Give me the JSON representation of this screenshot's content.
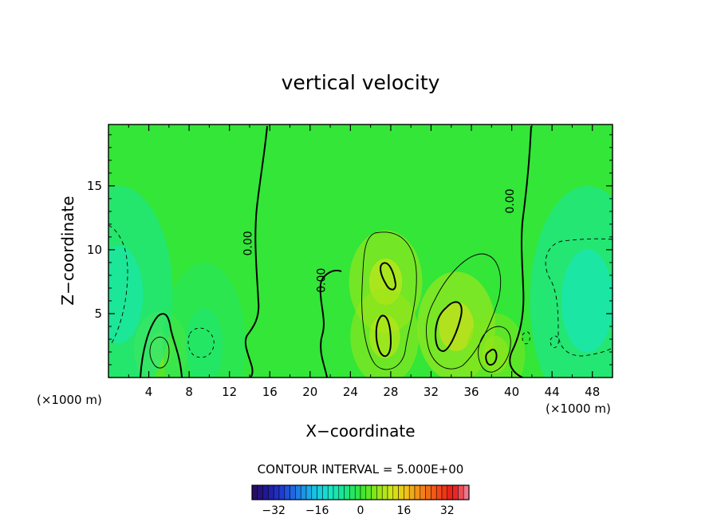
{
  "chart_data": {
    "type": "heatmap",
    "title": "vertical velocity",
    "xlabel": "X−coordinate",
    "ylabel": "Z−coordinate",
    "x_unit_label": "(×1000 m)",
    "y_unit_label": "(×1000 m)",
    "xlim": [
      0,
      50
    ],
    "ylim": [
      0,
      19.8
    ],
    "x_ticks": [
      4,
      8,
      12,
      16,
      20,
      24,
      28,
      32,
      36,
      40,
      44,
      48
    ],
    "y_ticks": [
      5,
      10,
      15
    ],
    "contour_interval_text": "CONTOUR INTERVAL = 5.000E+00",
    "contour_labels": [
      {
        "text": "0.00",
        "x": 14.2,
        "z": 10.5
      },
      {
        "text": "0.00",
        "x": 21.5,
        "z": 7.6
      },
      {
        "text": "0.00",
        "x": 40.2,
        "z": 13.8
      }
    ],
    "colorbar": {
      "min": -40,
      "max": 40,
      "ticks": [
        -32,
        -16,
        0,
        16,
        32
      ],
      "colors": [
        "#2a0a5a",
        "#1f1a9e",
        "#1f3fd6",
        "#1f7fe6",
        "#18bfe6",
        "#18e6c8",
        "#18e68a",
        "#33e638",
        "#8ae618",
        "#d2e618",
        "#f2c018",
        "#f28018",
        "#f24a18",
        "#e61818",
        "#f28aa0"
      ]
    },
    "features": [
      {
        "kind": "updraft",
        "x": 27.5,
        "z": 7.5,
        "w": 8
      },
      {
        "kind": "updraft",
        "x": 27.4,
        "z": 3.2,
        "w": 7
      },
      {
        "kind": "updraft",
        "x": 34.5,
        "z": 4.0,
        "w": 9
      },
      {
        "kind": "updraft",
        "x": 38.4,
        "z": 1.8,
        "w": 5
      },
      {
        "kind": "updraft",
        "x": 5.2,
        "z": 2.2,
        "w": 4
      },
      {
        "kind": "downdraft",
        "x": 1.0,
        "z": 6.5,
        "w": -7
      },
      {
        "kind": "downdraft",
        "x": 47.5,
        "z": 6.0,
        "w": -8
      },
      {
        "kind": "downdraft",
        "x": 9.5,
        "z": 2.5,
        "w": -3
      }
    ]
  }
}
